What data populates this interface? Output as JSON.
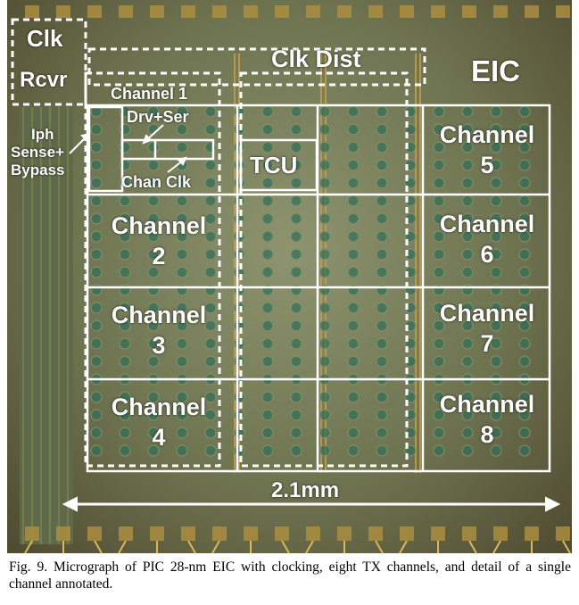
{
  "labels": {
    "clk": "Clk",
    "rcvr": "Rcvr",
    "clk_dist": "Clk Dist",
    "eic": "EIC",
    "channel1": "Channel 1",
    "drv_ser": "Drv+Ser",
    "iph": "Iph",
    "sense": "Sense+",
    "bypass": "Bypass",
    "chan_clk": "Chan Clk",
    "tcu": "TCU",
    "channel": "Channel",
    "ch2": "2",
    "ch3": "3",
    "ch4": "4",
    "ch5": "5",
    "ch6": "6",
    "ch7": "7",
    "ch8": "8",
    "scale": "2.1mm"
  },
  "caption": {
    "text": "Fig. 9.   Micrograph of PIC 28-nm EIC with clocking, eight TX channels, and detail of a single channel annotated."
  },
  "colors": {
    "annotation": "#ffffff",
    "die_dark": "#4f4a30",
    "die_mid": "#8e9470",
    "pad": "#2f6f5a",
    "wire": "#d9b95a"
  }
}
